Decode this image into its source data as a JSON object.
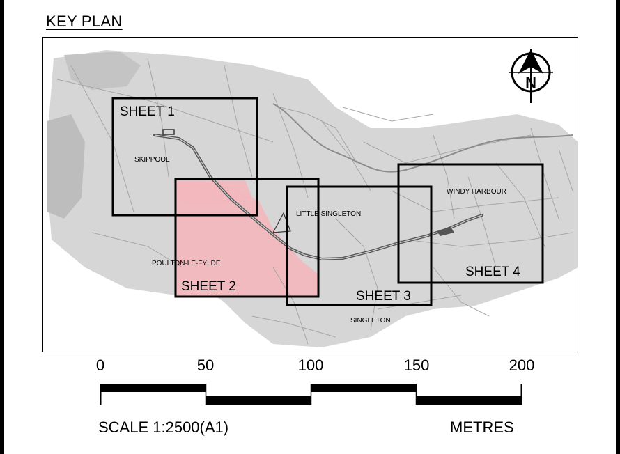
{
  "title": "KEY PLAN",
  "north_arrow": {
    "letter": "N",
    "icon": "north-arrow-icon"
  },
  "sheets": [
    {
      "id": "sheet-1",
      "label": "SHEET 1"
    },
    {
      "id": "sheet-2",
      "label": "SHEET 2"
    },
    {
      "id": "sheet-3",
      "label": "SHEET 3"
    },
    {
      "id": "sheet-4",
      "label": "SHEET 4"
    }
  ],
  "places": {
    "skippool": "SKIPPOOL",
    "little_singleton": "LITTLE SINGLETON",
    "poulton": "POULTON-LE-FYLDE",
    "singleton": "SINGLETON",
    "windy_harbour": "WINDY HARBOUR"
  },
  "scale_bar": {
    "ticks": [
      "0",
      "50",
      "100",
      "150",
      "200"
    ],
    "scale_label": "SCALE 1:2500(A1)",
    "unit_label": "METRES"
  },
  "colors": {
    "highlight": "#f2b8bd",
    "linework": "#a9a9a9",
    "base_fill": "#c8c8c8",
    "road": "#555555"
  }
}
